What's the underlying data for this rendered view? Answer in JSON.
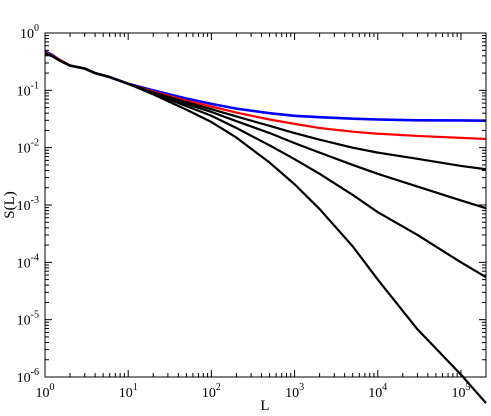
{
  "chart_data": {
    "type": "line",
    "xscale": "log",
    "yscale": "log",
    "xlim": [
      1,
      200000
    ],
    "ylim": [
      1e-06,
      1
    ],
    "grid": false,
    "legend": "none",
    "title": "",
    "xlabel": "L",
    "ylabel": "S(L)",
    "x_ticks": [
      {
        "value": 1,
        "base": "10",
        "exp": "0"
      },
      {
        "value": 10,
        "base": "10",
        "exp": "1"
      },
      {
        "value": 100,
        "base": "10",
        "exp": "2"
      },
      {
        "value": 1000,
        "base": "10",
        "exp": "3"
      },
      {
        "value": 10000,
        "base": "10",
        "exp": "4"
      },
      {
        "value": 100000,
        "base": "10",
        "exp": "5"
      }
    ],
    "y_ticks": [
      {
        "value": 1,
        "base": "10",
        "exp": "0"
      },
      {
        "value": 0.1,
        "base": "10",
        "exp": "-1"
      },
      {
        "value": 0.01,
        "base": "10",
        "exp": "-2"
      },
      {
        "value": 0.001,
        "base": "10",
        "exp": "-3"
      },
      {
        "value": 0.0001,
        "base": "10",
        "exp": "-4"
      },
      {
        "value": 1e-05,
        "base": "10",
        "exp": "-5"
      },
      {
        "value": 1e-06,
        "base": "10",
        "exp": "-6"
      }
    ],
    "series": [
      {
        "color": "#0000ff",
        "x": [
          1,
          1.2,
          1.5,
          2,
          3,
          4,
          6,
          10,
          20,
          50,
          100,
          200,
          500,
          1000,
          2000,
          5000,
          10000,
          30000,
          100000,
          200000
        ],
        "y": [
          0.48,
          0.42,
          0.34,
          0.27,
          0.24,
          0.2,
          0.17,
          0.13,
          0.1,
          0.072,
          0.058,
          0.048,
          0.04,
          0.036,
          0.034,
          0.032,
          0.031,
          0.03,
          0.0298,
          0.0295
        ]
      },
      {
        "color": "#ff0000",
        "x": [
          1,
          1.2,
          1.5,
          2,
          3,
          4,
          6,
          10,
          20,
          50,
          100,
          200,
          500,
          1000,
          2000,
          5000,
          10000,
          30000,
          100000,
          200000
        ],
        "y": [
          0.46,
          0.41,
          0.34,
          0.27,
          0.24,
          0.2,
          0.17,
          0.13,
          0.095,
          0.066,
          0.052,
          0.041,
          0.031,
          0.026,
          0.022,
          0.019,
          0.0175,
          0.016,
          0.0148,
          0.0142
        ]
      },
      {
        "color": "#000000",
        "x": [
          1,
          1.2,
          1.5,
          2,
          3,
          4,
          6,
          10,
          20,
          50,
          100,
          200,
          500,
          1000,
          2000,
          5000,
          10000,
          30000,
          100000,
          200000
        ],
        "y": [
          0.44,
          0.4,
          0.33,
          0.27,
          0.24,
          0.2,
          0.17,
          0.13,
          0.092,
          0.062,
          0.047,
          0.035,
          0.024,
          0.018,
          0.0138,
          0.01,
          0.0082,
          0.0064,
          0.0048,
          0.0042
        ]
      },
      {
        "color": "#000000",
        "x": [
          1,
          1.2,
          1.5,
          2,
          3,
          4,
          6,
          10,
          20,
          50,
          100,
          200,
          500,
          1000,
          2000,
          5000,
          10000,
          30000,
          100000,
          200000
        ],
        "y": [
          0.44,
          0.4,
          0.33,
          0.27,
          0.24,
          0.2,
          0.17,
          0.13,
          0.09,
          0.058,
          0.042,
          0.029,
          0.018,
          0.012,
          0.0082,
          0.005,
          0.0035,
          0.0021,
          0.0012,
          0.00088
        ]
      },
      {
        "color": "#000000",
        "x": [
          1,
          1.2,
          1.5,
          2,
          3,
          4,
          6,
          10,
          20,
          50,
          100,
          200,
          500,
          1000,
          2000,
          5000,
          10000,
          30000,
          100000,
          200000
        ],
        "y": [
          0.44,
          0.4,
          0.33,
          0.27,
          0.24,
          0.2,
          0.17,
          0.13,
          0.088,
          0.053,
          0.036,
          0.022,
          0.011,
          0.0063,
          0.0035,
          0.0015,
          0.00075,
          0.0003,
          0.0001,
          5.5e-05
        ]
      },
      {
        "color": "#000000",
        "x": [
          1,
          1.2,
          1.5,
          2,
          3,
          4,
          6,
          10,
          20,
          50,
          100,
          200,
          500,
          1000,
          2000,
          5000,
          10000,
          30000,
          100000,
          200000
        ],
        "y": [
          0.44,
          0.4,
          0.33,
          0.27,
          0.24,
          0.2,
          0.17,
          0.13,
          0.085,
          0.046,
          0.028,
          0.015,
          0.0055,
          0.0023,
          0.00085,
          0.00019,
          5e-05,
          6.8e-06,
          1.1e-06,
          3.5e-07
        ]
      }
    ]
  }
}
